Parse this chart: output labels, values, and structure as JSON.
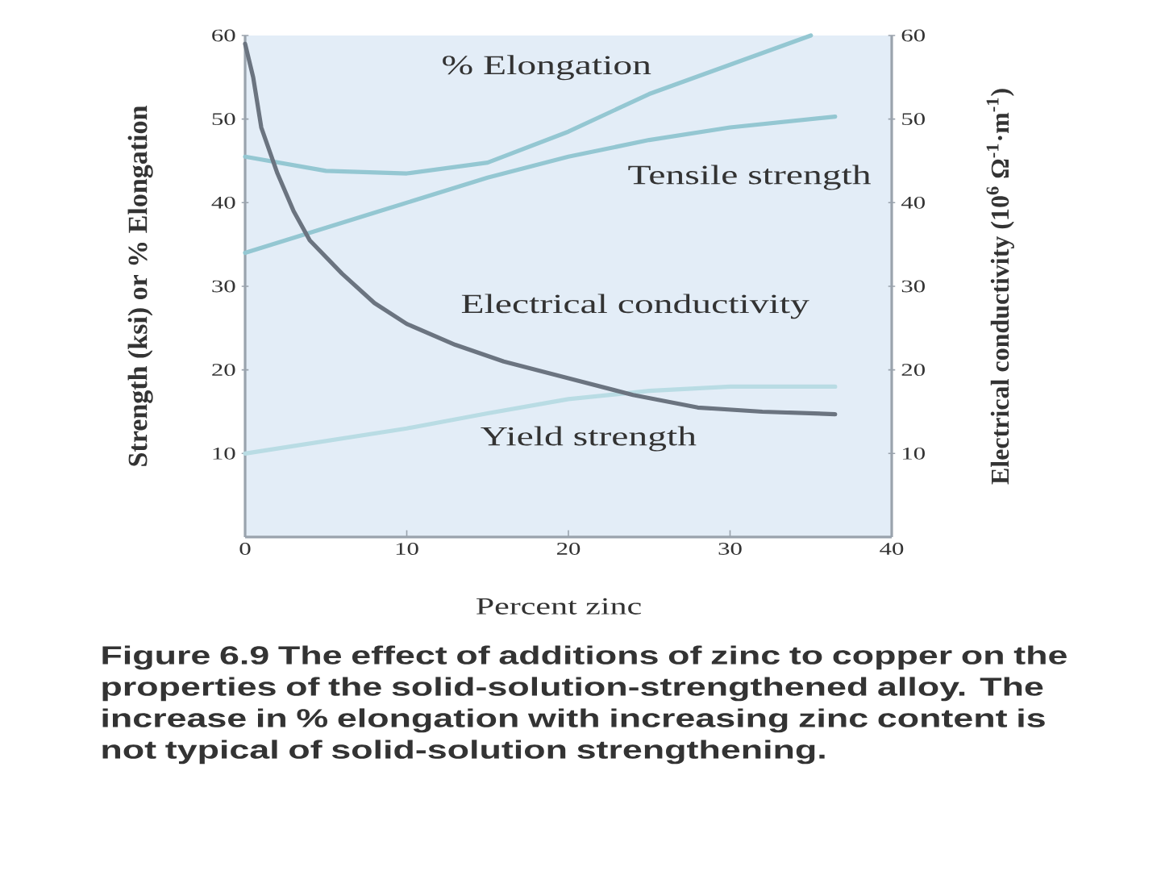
{
  "chart_data": {
    "type": "line",
    "xlabel": "Percent zinc",
    "ylabel": "Strength (ksi) or % Elongation",
    "y2label": "Electrical conductivity (10$^{6}$ Ω$^{-1}$·m$^{-1}$)",
    "xlim": [
      0,
      40
    ],
    "xticks": [
      0,
      10,
      20,
      30,
      40
    ],
    "ylim": [
      0,
      60
    ],
    "yticks": [
      10,
      20,
      30,
      40,
      50,
      60
    ],
    "y2lim": [
      0,
      60
    ],
    "y2ticks": [
      10,
      20,
      30,
      40,
      50,
      60
    ],
    "marker": "none",
    "line_style": "solid",
    "series": [
      {
        "name": "% Elongation",
        "color": "#94c7d2",
        "x": [
          0,
          5,
          10,
          15,
          20,
          25,
          30,
          35
        ],
        "values": [
          45.5,
          43.8,
          43.5,
          44.8,
          48.5,
          53,
          56.5,
          60
        ]
      },
      {
        "name": "Tensile strength",
        "color": "#94c7d2",
        "x": [
          0,
          5,
          10,
          15,
          20,
          25,
          30,
          36.5
        ],
        "values": [
          34,
          37,
          40,
          43,
          45.5,
          47.5,
          49,
          50.3
        ]
      },
      {
        "name": "Electrical conductivity",
        "color": "#6b7480",
        "axis": "y2",
        "x": [
          0,
          0.5,
          1,
          2,
          3,
          4,
          6,
          8,
          10,
          13,
          16,
          20,
          24,
          28,
          32,
          36.5
        ],
        "values": [
          59,
          55,
          49,
          43.5,
          39,
          35.5,
          31.5,
          28,
          25.5,
          23,
          21,
          19,
          17,
          15.5,
          15,
          14.7
        ]
      },
      {
        "name": "Yield strength",
        "color": "#b9dce4",
        "x": [
          0,
          5,
          10,
          15,
          20,
          25,
          30,
          36.5
        ],
        "values": [
          10,
          11.5,
          13,
          14.8,
          16.5,
          17.5,
          18,
          18
        ]
      }
    ],
    "annotations": [
      "Figure 6.9 The effect of additions of zinc to copper on the properties of the solid-solution-strengthened alloy. The increase in % elongation with increasing zinc content is not typical of solid-solution strengthening."
    ]
  }
}
